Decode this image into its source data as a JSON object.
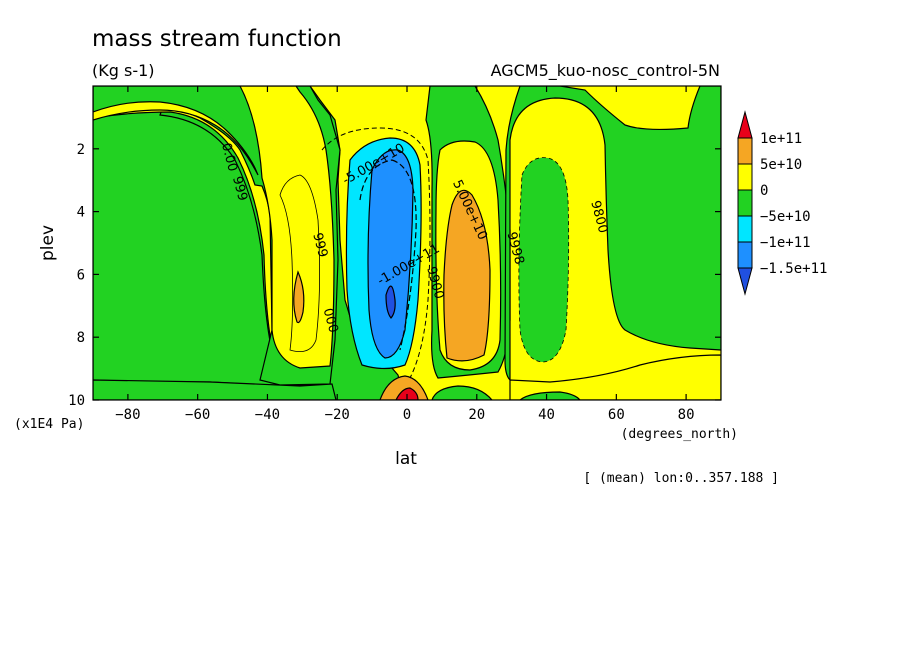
{
  "chart_data": {
    "type": "filled-contour",
    "title": "mass stream function",
    "units": "(Kg s-1)",
    "experiment": "AGCM5_kuo-nosc_control-5N",
    "xlabel": "lat",
    "x_units": "(degrees_north)",
    "ylabel": "plev",
    "y_units": "(x1E4 Pa)",
    "footnote": "[ (mean) lon:0..357.188 ]",
    "xlim": [
      -90,
      90
    ],
    "ylim": [
      10,
      0
    ],
    "x_ticks": [
      -80,
      -60,
      -40,
      -20,
      0,
      20,
      40,
      60,
      80
    ],
    "x_tick_labels": [
      "−80",
      "−60",
      "−40",
      "−20",
      "0",
      "20",
      "40",
      "60",
      "80"
    ],
    "y_ticks": [
      2,
      4,
      6,
      8,
      10
    ],
    "y_tick_labels": [
      "2",
      "4",
      "6",
      "8",
      "10"
    ],
    "colorbar": {
      "levels": [
        -150000000000.0,
        -100000000000.0,
        -50000000000.0,
        0,
        50000000000.0,
        100000000000.0
      ],
      "labels": [
        "1e+11",
        "5e+10",
        "0",
        "−5e+10",
        "−1e+11",
        "−1.5e+11"
      ],
      "colors": [
        "#e8001a",
        "#f5a623",
        "#ffff00",
        "#22d222",
        "#00e6ff",
        "#1e90ff",
        "#2050e0"
      ]
    },
    "contour_labels": [
      {
        "text": "0.00",
        "lat": -52,
        "plev": 2.3
      },
      {
        "text": "-5.00e+10",
        "lat": -9,
        "plev": 2.6
      },
      {
        "text": "5.00e+10",
        "lat": 17,
        "plev": 4
      },
      {
        "text": "-1.00e+11",
        "lat": 1,
        "plev": 5.8
      },
      {
        "text": "999",
        "lat": -49,
        "plev": 3.3
      },
      {
        "text": "999",
        "lat": -26,
        "plev": 5.1
      },
      {
        "text": "000",
        "lat": -23,
        "plev": 7.5
      },
      {
        "text": "9900",
        "lat": 7,
        "plev": 6.3
      },
      {
        "text": "9998",
        "lat": 30,
        "plev": 5.2
      },
      {
        "text": "9800",
        "lat": 54,
        "plev": 4.2
      }
    ],
    "regions": [
      {
        "name": "background",
        "level": "0 to 5e+10",
        "color": "#ffff00"
      },
      {
        "name": "polar-south-negative",
        "level": "-5e+10 to 0",
        "color": "#22d222"
      },
      {
        "name": "tropical-north-negative",
        "level": "-5e+10 to 0",
        "color": "#22d222"
      },
      {
        "name": "polar-north-negative",
        "level": "-5e+10 to 0",
        "color": "#22d222"
      },
      {
        "name": "ferrel-south-positive",
        "level": "5e+10 to 1e+11",
        "color": "#f5a623"
      },
      {
        "name": "hadley-north-positive",
        "level": "5e+10 to 1e+11",
        "color": "#f5a623"
      },
      {
        "name": "hadley-south-core",
        "level": "-1e+11 to -5e+10",
        "color": "#00e6ff"
      },
      {
        "name": "hadley-south-inner",
        "level": "-1.5e+11 to -1e+11",
        "color": "#1e90ff"
      },
      {
        "name": "hadley-south-min",
        "level": "< -1.5e+11",
        "color": "#2050e0"
      }
    ]
  }
}
